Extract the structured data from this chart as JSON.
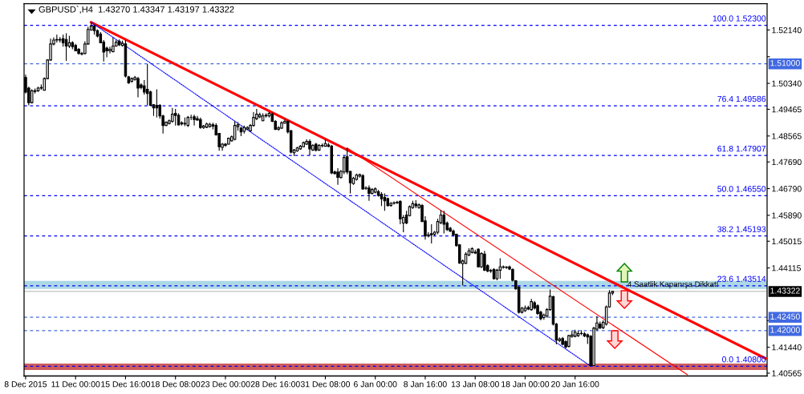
{
  "chart_data": {
    "type": "candlestick",
    "title": "GBPUSD`,H4  1.43270 1.43347 1.43197 1.43322",
    "categories": [
      "8 Dec 2015",
      null,
      null,
      null,
      null,
      null,
      null,
      null,
      null,
      null,
      null,
      null,
      null,
      null,
      null,
      null,
      "11 Dec 00:00",
      null,
      null,
      null,
      null,
      null,
      null,
      null,
      null,
      null,
      null,
      null,
      null,
      null,
      null,
      null,
      "15 Dec 16:00",
      null,
      null,
      null,
      null,
      null,
      null,
      null,
      null,
      null,
      null,
      null,
      null,
      null,
      null,
      null,
      "18 Dec 08:00",
      null,
      null,
      null,
      null,
      null,
      null,
      null,
      null,
      null,
      null,
      null,
      null,
      null,
      null,
      null,
      "23 Dec 00:00",
      null,
      null,
      null,
      null,
      null,
      null,
      null,
      null,
      null,
      null,
      null,
      null,
      null,
      null,
      null,
      "28 Dec 16:00",
      null,
      null,
      null,
      null,
      null,
      null,
      null,
      null,
      null,
      null,
      null,
      null,
      null,
      null,
      null,
      "31 Dec 08:00",
      null,
      null,
      null,
      null,
      null,
      null,
      null,
      null,
      null,
      null,
      null,
      null,
      null,
      null,
      null,
      "6 Jan 00:00",
      null,
      null,
      null,
      null,
      null,
      null,
      null,
      null,
      null,
      null,
      null,
      null,
      null,
      null,
      null,
      "8 Jan 16:00",
      null,
      null,
      null,
      null,
      null,
      null,
      null,
      null,
      null,
      null,
      null,
      null,
      null,
      null,
      null,
      "13 Jan 08:00",
      null,
      null,
      null,
      null,
      null,
      null,
      null,
      null,
      null,
      null,
      null,
      null,
      null,
      null,
      null,
      "18 Jan 00:00",
      null,
      null,
      null,
      null,
      null,
      null,
      null,
      null,
      null,
      null,
      null,
      null,
      null,
      null,
      null,
      "20 Jan 16:00",
      null,
      null,
      null,
      null,
      null,
      null,
      null,
      null,
      null,
      null,
      null,
      null,
      null,
      null,
      null,
      null,
      null,
      null,
      null,
      null,
      null,
      null,
      null,
      null,
      null,
      null,
      null,
      null,
      null,
      null,
      null,
      null,
      null,
      null,
      null,
      null,
      null,
      null,
      null,
      null,
      null,
      null,
      null,
      null,
      null,
      null,
      null,
      null,
      null,
      null,
      null,
      null,
      null,
      null,
      null,
      null,
      null,
      null,
      null,
      null,
      null
    ],
    "ohlc": [
      [
        1.5054,
        1.5063,
        1.5,
        1.5005
      ],
      [
        1.5018,
        1.5023,
        1.496,
        1.4969
      ],
      [
        1.4969,
        1.5014,
        1.4966,
        1.5009
      ],
      [
        1.5007,
        1.5017,
        1.5,
        1.5009
      ],
      [
        1.5009,
        1.5023,
        1.5005,
        1.5018
      ],
      [
        1.5018,
        1.503,
        1.5012,
        1.502
      ],
      [
        1.5011,
        1.5054,
        1.5009,
        1.505
      ],
      [
        1.505,
        1.5115,
        1.5048,
        1.5113
      ],
      [
        1.5113,
        1.5185,
        1.511,
        1.5167
      ],
      [
        1.5167,
        1.5189,
        1.5162,
        1.518
      ],
      [
        1.518,
        1.5198,
        1.5171,
        1.5182
      ],
      [
        1.5182,
        1.519,
        1.5172,
        1.518
      ],
      [
        1.5185,
        1.5198,
        1.5158,
        1.5171
      ],
      [
        1.5182,
        1.5203,
        1.511,
        1.516
      ],
      [
        1.516,
        1.5194,
        1.5153,
        1.5171
      ],
      [
        1.5171,
        1.5176,
        1.5149,
        1.5158
      ],
      [
        1.5162,
        1.5167,
        1.5142,
        1.5144
      ],
      [
        1.5149,
        1.5153,
        1.5131,
        1.5135
      ],
      [
        1.5135,
        1.514,
        1.5128,
        1.5133
      ],
      [
        1.5135,
        1.5176,
        1.5131,
        1.5167
      ],
      [
        1.5167,
        1.5225,
        1.5164,
        1.5216
      ],
      [
        1.5214,
        1.5238,
        1.5212,
        1.5227
      ],
      [
        1.5227,
        1.5232,
        1.5198,
        1.5212
      ],
      [
        1.5212,
        1.5216,
        1.5189,
        1.5194
      ],
      [
        1.52,
        1.5207,
        1.5169,
        1.5171
      ],
      [
        1.5173,
        1.518,
        1.5108,
        1.514
      ],
      [
        1.5153,
        1.5158,
        1.5122,
        1.5144
      ],
      [
        1.5144,
        1.5158,
        1.5135,
        1.5149
      ],
      [
        1.5141,
        1.5189,
        1.5138,
        1.516
      ],
      [
        1.516,
        1.518,
        1.5158,
        1.5173
      ],
      [
        1.5176,
        1.5182,
        1.516,
        1.5164
      ],
      [
        1.5162,
        1.5178,
        1.5158,
        1.5169
      ],
      [
        1.5167,
        1.518,
        1.5054,
        1.5059
      ],
      [
        1.5056,
        1.5059,
        1.5032,
        1.5036
      ],
      [
        1.5041,
        1.5054,
        1.5036,
        1.505
      ],
      [
        1.5047,
        1.5059,
        1.5043,
        1.5054
      ],
      [
        1.505,
        1.5056,
        1.4987,
        1.5018
      ],
      [
        1.5029,
        1.5034,
        1.5014,
        1.502
      ],
      [
        1.5025,
        1.5045,
        1.4996,
        1.5005
      ],
      [
        1.5014,
        1.5099,
        1.496,
        1.5
      ],
      [
        1.5005,
        1.5009,
        1.4958,
        1.496
      ],
      [
        1.4962,
        1.4964,
        1.4924,
        1.4951
      ],
      [
        1.496,
        1.5014,
        1.4919,
        1.4951
      ],
      [
        1.496,
        1.4964,
        1.4915,
        1.4924
      ],
      [
        1.4924,
        1.4928,
        1.4865,
        1.4892
      ],
      [
        1.4892,
        1.4906,
        1.489,
        1.4903
      ],
      [
        1.4899,
        1.4912,
        1.4895,
        1.4908
      ],
      [
        1.4906,
        1.4951,
        1.4901,
        1.493
      ],
      [
        1.4933,
        1.4948,
        1.4892,
        1.4926
      ],
      [
        1.4926,
        1.4933,
        1.4892,
        1.4894
      ],
      [
        1.4901,
        1.4906,
        1.4892,
        1.4897
      ],
      [
        1.4897,
        1.4919,
        1.489,
        1.4899
      ],
      [
        1.4892,
        1.4924,
        1.4887,
        1.4919
      ],
      [
        1.4919,
        1.4928,
        1.491,
        1.4919
      ],
      [
        1.4921,
        1.4928,
        1.4892,
        1.4912
      ],
      [
        1.4915,
        1.4924,
        1.4908,
        1.491
      ],
      [
        1.4912,
        1.4919,
        1.4881,
        1.4885
      ],
      [
        1.4885,
        1.4894,
        1.488,
        1.489
      ],
      [
        1.4886,
        1.4901,
        1.4883,
        1.4897
      ],
      [
        1.4888,
        1.4901,
        1.4885,
        1.4896
      ],
      [
        1.4894,
        1.4901,
        1.4879,
        1.489
      ],
      [
        1.4892,
        1.4899,
        1.4858,
        1.486
      ],
      [
        1.4865,
        1.4867,
        1.4807,
        1.482
      ],
      [
        1.4818,
        1.4833,
        1.4807,
        1.4829
      ],
      [
        1.4829,
        1.4833,
        1.482,
        1.4825
      ],
      [
        1.4829,
        1.4851,
        1.4827,
        1.4849
      ],
      [
        1.484,
        1.4858,
        1.4838,
        1.4854
      ],
      [
        1.4845,
        1.4906,
        1.4842,
        1.4892
      ],
      [
        1.4888,
        1.4903,
        1.4874,
        1.4894
      ],
      [
        1.4883,
        1.4888,
        1.4856,
        1.487
      ],
      [
        1.4872,
        1.4892,
        1.4865,
        1.4885
      ],
      [
        1.488,
        1.489,
        1.4876,
        1.4885
      ],
      [
        1.4874,
        1.4897,
        1.487,
        1.4892
      ],
      [
        1.4892,
        1.4937,
        1.4888,
        1.4919
      ],
      [
        1.4915,
        1.4948,
        1.491,
        1.493
      ],
      [
        1.4921,
        1.4935,
        1.4917,
        1.4928
      ],
      [
        1.4908,
        1.4933,
        1.4906,
        1.4924
      ],
      [
        1.4924,
        1.4933,
        1.4919,
        1.4927
      ],
      [
        1.4924,
        1.4937,
        1.4919,
        1.4933
      ],
      [
        1.493,
        1.4935,
        1.4903,
        1.4906
      ],
      [
        1.4906,
        1.491,
        1.4876,
        1.4879
      ],
      [
        1.4879,
        1.489,
        1.4874,
        1.4884
      ],
      [
        1.4883,
        1.4906,
        1.488,
        1.4901
      ],
      [
        1.49,
        1.4912,
        1.4897,
        1.4906
      ],
      [
        1.4906,
        1.491,
        1.4865,
        1.487
      ],
      [
        1.4874,
        1.4877,
        1.4798,
        1.4802
      ],
      [
        1.48,
        1.4813,
        1.4789,
        1.4809
      ],
      [
        1.4806,
        1.482,
        1.4803,
        1.4816
      ],
      [
        1.4813,
        1.4826,
        1.481,
        1.4822
      ],
      [
        1.482,
        1.4838,
        1.4818,
        1.4834
      ],
      [
        1.4829,
        1.4845,
        1.4826,
        1.4838
      ],
      [
        1.4838,
        1.4845,
        1.4791,
        1.4813
      ],
      [
        1.4809,
        1.4829,
        1.4806,
        1.4825
      ],
      [
        1.4829,
        1.4833,
        1.4804,
        1.4809
      ],
      [
        1.4809,
        1.4829,
        1.4806,
        1.4825
      ],
      [
        1.4825,
        1.4831,
        1.4818,
        1.4824
      ],
      [
        1.4822,
        1.4845,
        1.482,
        1.4831
      ],
      [
        1.4826,
        1.4833,
        1.4818,
        1.4822
      ],
      [
        1.4822,
        1.4826,
        1.4728,
        1.4732
      ],
      [
        1.4735,
        1.474,
        1.4726,
        1.473
      ],
      [
        1.4735,
        1.4748,
        1.4692,
        1.4717
      ],
      [
        1.4717,
        1.4742,
        1.4712,
        1.4737
      ],
      [
        1.4735,
        1.479,
        1.4728,
        1.4784
      ],
      [
        1.4786,
        1.4816,
        1.4728,
        1.4735
      ],
      [
        1.4737,
        1.4739,
        1.4663,
        1.4699
      ],
      [
        1.4696,
        1.4719,
        1.4692,
        1.4714
      ],
      [
        1.471,
        1.473,
        1.4706,
        1.4725
      ],
      [
        1.4721,
        1.473,
        1.4716,
        1.4726
      ],
      [
        1.4723,
        1.4728,
        1.4675,
        1.4678
      ],
      [
        1.468,
        1.4687,
        1.4674,
        1.4681
      ],
      [
        1.4681,
        1.469,
        1.4638,
        1.4663
      ],
      [
        1.4663,
        1.4681,
        1.4659,
        1.4676
      ],
      [
        1.4667,
        1.4683,
        1.4663,
        1.4678
      ],
      [
        1.4669,
        1.4674,
        1.4652,
        1.4656
      ],
      [
        1.466,
        1.4667,
        1.462,
        1.4645
      ],
      [
        1.4649,
        1.4663,
        1.4604,
        1.4638
      ],
      [
        1.4645,
        1.4649,
        1.4618,
        1.4622
      ],
      [
        1.4622,
        1.4634,
        1.4618,
        1.4629
      ],
      [
        1.463,
        1.4636,
        1.4625,
        1.4631
      ],
      [
        1.4631,
        1.4638,
        1.4627,
        1.4633
      ],
      [
        1.4636,
        1.464,
        1.4559,
        1.4577
      ],
      [
        1.4563,
        1.459,
        1.4532,
        1.4582
      ],
      [
        1.459,
        1.4604,
        1.4559,
        1.4563
      ],
      [
        1.4588,
        1.4622,
        1.4585,
        1.4618
      ],
      [
        1.4615,
        1.4638,
        1.4611,
        1.4628
      ],
      [
        1.4627,
        1.464,
        1.4613,
        1.4621
      ],
      [
        1.4615,
        1.4629,
        1.4611,
        1.4624
      ],
      [
        1.4622,
        1.4627,
        1.4566,
        1.4568
      ],
      [
        1.457,
        1.4586,
        1.4507,
        1.4519
      ],
      [
        1.4522,
        1.4532,
        1.4514,
        1.4523
      ],
      [
        1.4527,
        1.4559,
        1.4494,
        1.4523
      ],
      [
        1.4525,
        1.4536,
        1.452,
        1.4532
      ],
      [
        1.4532,
        1.4577,
        1.4525,
        1.4568
      ],
      [
        1.4564,
        1.4606,
        1.4559,
        1.459
      ],
      [
        1.459,
        1.4604,
        1.4528,
        1.4559
      ],
      [
        1.4563,
        1.4568,
        1.4536,
        1.4541
      ],
      [
        1.4545,
        1.455,
        1.4532,
        1.4536
      ],
      [
        1.4536,
        1.4541,
        1.4518,
        1.4523
      ],
      [
        1.4525,
        1.4527,
        1.4483,
        1.4487
      ],
      [
        1.4489,
        1.4492,
        1.4425,
        1.4428
      ],
      [
        1.4426,
        1.444,
        1.4352,
        1.4435
      ],
      [
        1.4427,
        1.4464,
        1.4424,
        1.4458
      ],
      [
        1.4455,
        1.4478,
        1.4451,
        1.4469
      ],
      [
        1.4464,
        1.4481,
        1.446,
        1.4476
      ],
      [
        1.4462,
        1.4473,
        1.4458,
        1.4465
      ],
      [
        1.4474,
        1.4478,
        1.4413,
        1.4415
      ],
      [
        1.4415,
        1.4464,
        1.4411,
        1.446
      ],
      [
        1.4458,
        1.4469,
        1.4401,
        1.4404
      ],
      [
        1.4419,
        1.4424,
        1.4397,
        1.4401
      ],
      [
        1.4401,
        1.4408,
        1.4395,
        1.4403
      ],
      [
        1.4406,
        1.4411,
        1.4372,
        1.4375
      ],
      [
        1.4375,
        1.4408,
        1.437,
        1.4404
      ],
      [
        1.4404,
        1.4444,
        1.4375,
        1.4415
      ],
      [
        1.4415,
        1.442,
        1.4409,
        1.4414
      ],
      [
        1.4414,
        1.4418,
        1.4408,
        1.4413
      ],
      [
        1.4415,
        1.442,
        1.4404,
        1.4408
      ],
      [
        1.4406,
        1.441,
        1.4366,
        1.437
      ],
      [
        1.4368,
        1.437,
        1.4338,
        1.4341
      ],
      [
        1.4347,
        1.435,
        1.4258,
        1.4262
      ],
      [
        1.4262,
        1.428,
        1.4258,
        1.4276
      ],
      [
        1.4267,
        1.4285,
        1.4263,
        1.4276
      ],
      [
        1.4278,
        1.4284,
        1.4269,
        1.4273
      ],
      [
        1.4271,
        1.4307,
        1.4267,
        1.4298
      ],
      [
        1.4294,
        1.43,
        1.4271,
        1.4276
      ],
      [
        1.4284,
        1.4289,
        1.4253,
        1.4258
      ],
      [
        1.4262,
        1.4267,
        1.4235,
        1.424
      ],
      [
        1.4244,
        1.4258,
        1.4237,
        1.4253
      ],
      [
        1.4249,
        1.4276,
        1.4244,
        1.4271
      ],
      [
        1.4271,
        1.4339,
        1.4267,
        1.4316
      ],
      [
        1.4314,
        1.4318,
        1.4217,
        1.4222
      ],
      [
        1.4222,
        1.4226,
        1.4154,
        1.4168
      ],
      [
        1.4167,
        1.4177,
        1.4161,
        1.4172
      ],
      [
        1.4173,
        1.4179,
        1.415,
        1.4154
      ],
      [
        1.4163,
        1.4167,
        1.414,
        1.4145
      ],
      [
        1.4147,
        1.4186,
        1.4143,
        1.4183
      ],
      [
        1.418,
        1.4199,
        1.4176,
        1.4185
      ],
      [
        1.4181,
        1.4203,
        1.4177,
        1.4195
      ],
      [
        1.4183,
        1.4199,
        1.4179,
        1.419
      ],
      [
        1.419,
        1.4201,
        1.4185,
        1.4191
      ],
      [
        1.4189,
        1.4195,
        1.4178,
        1.4182
      ],
      [
        1.4186,
        1.419,
        1.4155,
        1.4179
      ],
      [
        1.4181,
        1.4185,
        1.408,
        1.4082
      ],
      [
        1.4082,
        1.4213,
        1.408,
        1.4208
      ],
      [
        1.4205,
        1.4249,
        1.4199,
        1.4226
      ],
      [
        1.4222,
        1.4231,
        1.4205,
        1.421
      ],
      [
        1.421,
        1.4235,
        1.4205,
        1.4228
      ],
      [
        1.4222,
        1.4285,
        1.4217,
        1.428
      ],
      [
        1.428,
        1.4337,
        1.4277,
        1.4327
      ],
      [
        1.4327,
        1.43347,
        1.43197,
        1.43322
      ],
      null,
      null,
      null,
      null,
      null,
      null,
      null,
      null,
      null,
      null,
      null,
      null,
      null,
      null,
      null,
      null,
      null,
      null,
      null,
      null,
      null,
      null,
      null,
      null,
      null,
      null,
      null,
      null,
      null,
      null,
      null,
      null,
      null,
      null,
      null,
      null,
      null,
      null,
      null,
      null,
      null,
      null,
      null,
      null,
      null,
      null,
      null,
      null,
      null
    ],
    "series": [
      {
        "type": "line",
        "color": "#ff0000",
        "line_style": "solid",
        "values": [
          null,
          null,
          null,
          null,
          null,
          null,
          null,
          null,
          null,
          null,
          null,
          null,
          null,
          null,
          null,
          null,
          null,
          null,
          null,
          null,
          null,
          1.524,
          null,
          null,
          null,
          null,
          null,
          null,
          null,
          null,
          null,
          null,
          null,
          null,
          null,
          null,
          null,
          null,
          null,
          null,
          null,
          null,
          null,
          null,
          null,
          null,
          null,
          null,
          null,
          null,
          null,
          null,
          null,
          null,
          null,
          null,
          null,
          null,
          null,
          null,
          null,
          null,
          null,
          null,
          null,
          null,
          null,
          null,
          null,
          null,
          null,
          null,
          null,
          null,
          null,
          null,
          null,
          null,
          null,
          null,
          null,
          null,
          null,
          null,
          null,
          null,
          null,
          null,
          null,
          null,
          null,
          null,
          null,
          null,
          null,
          null,
          null,
          null,
          null,
          null,
          null,
          null,
          null,
          null,
          null,
          null,
          null,
          null,
          null,
          null,
          null,
          null,
          null,
          null,
          null,
          null,
          null,
          null,
          null,
          null,
          null,
          null,
          null,
          null,
          null,
          null,
          null,
          null,
          null,
          null,
          null,
          null,
          null,
          null,
          null,
          null,
          null,
          null,
          null,
          null,
          null,
          null,
          null,
          null,
          null,
          null,
          null,
          null,
          null,
          null,
          null,
          null,
          null,
          null,
          null,
          null,
          null,
          null,
          null,
          null,
          null,
          null,
          null,
          null,
          null,
          null,
          null,
          null,
          null,
          null,
          null,
          null,
          null,
          null,
          null,
          null,
          null,
          null,
          null,
          null,
          null,
          null,
          null,
          null,
          null,
          null,
          null,
          null,
          null,
          null,
          null,
          null,
          null,
          null,
          null,
          null,
          null,
          null,
          null,
          null,
          null,
          null,
          null,
          null,
          null,
          null,
          null,
          null,
          null,
          null,
          null,
          null,
          null,
          null,
          null,
          null,
          null,
          null,
          null,
          null,
          null,
          null,
          null,
          null,
          null,
          null,
          null,
          null,
          null,
          null,
          null,
          null,
          null,
          null,
          null,
          null,
          null,
          1.4106
        ]
      },
      {
        "type": "line",
        "color": "#ff0000",
        "line_style": "solid",
        "values": [
          null,
          null,
          null,
          null,
          null,
          null,
          null,
          null,
          null,
          null,
          null,
          null,
          null,
          null,
          null,
          null,
          null,
          null,
          null,
          null,
          null,
          null,
          null,
          null,
          null,
          null,
          null,
          null,
          null,
          null,
          null,
          null,
          null,
          null,
          null,
          null,
          null,
          null,
          null,
          null,
          null,
          null,
          null,
          null,
          null,
          null,
          null,
          null,
          null,
          null,
          null,
          null,
          null,
          null,
          null,
          null,
          null,
          null,
          null,
          null,
          null,
          null,
          null,
          null,
          null,
          null,
          null,
          null,
          null,
          null,
          null,
          null,
          null,
          null,
          null,
          null,
          null,
          null,
          null,
          null,
          null,
          null,
          null,
          null,
          null,
          null,
          null,
          null,
          null,
          null,
          null,
          null,
          null,
          null,
          null,
          null,
          null,
          null,
          null,
          null,
          null,
          null,
          null,
          1.4816,
          null,
          null,
          null,
          null,
          null,
          null,
          null,
          null,
          null,
          null,
          null,
          null,
          null,
          null,
          null,
          null,
          null,
          null,
          null,
          null,
          null,
          null,
          null,
          null,
          null,
          null,
          null,
          null,
          null,
          null,
          null,
          null,
          null,
          null,
          null,
          null,
          null,
          null,
          null,
          null,
          null,
          null,
          null,
          null,
          null,
          null,
          null,
          null,
          null,
          null,
          null,
          null,
          null,
          null,
          null,
          null,
          null,
          null,
          null,
          null,
          null,
          null,
          null,
          null,
          null,
          null,
          null,
          null,
          null,
          null,
          null,
          null,
          null,
          null,
          null,
          null,
          null,
          null,
          null,
          null,
          null,
          null,
          null,
          null,
          null,
          null,
          null,
          null,
          null,
          null,
          null,
          null,
          null,
          null,
          null,
          null,
          null,
          null,
          null,
          null,
          null,
          null,
          null,
          null,
          null,
          null,
          null,
          null,
          1.4051,
          null,
          null,
          null,
          null,
          null,
          null,
          null,
          null,
          null,
          null,
          null,
          null,
          null,
          null,
          null,
          null,
          null,
          null,
          null,
          null,
          null,
          null,
          null,
          null,
          null
        ]
      },
      {
        "type": "line",
        "color": "#0000ff",
        "line_style": "dotted",
        "values": [
          null,
          null,
          null,
          null,
          null,
          null,
          null,
          null,
          null,
          null,
          null,
          null,
          null,
          null,
          null,
          null,
          null,
          null,
          null,
          null,
          null,
          1.524,
          null,
          null,
          null,
          null,
          null,
          null,
          null,
          null,
          null,
          null,
          null,
          null,
          null,
          null,
          null,
          null,
          null,
          null,
          null,
          null,
          null,
          null,
          null,
          null,
          null,
          null,
          null,
          null,
          null,
          null,
          null,
          null,
          null,
          null,
          null,
          null,
          null,
          null,
          null,
          null,
          null,
          null,
          null,
          null,
          null,
          null,
          null,
          null,
          null,
          null,
          null,
          null,
          null,
          null,
          null,
          null,
          null,
          null,
          null,
          null,
          null,
          null,
          null,
          null,
          null,
          null,
          null,
          null,
          null,
          null,
          null,
          null,
          null,
          null,
          null,
          null,
          null,
          null,
          null,
          null,
          null,
          null,
          null,
          null,
          null,
          null,
          null,
          null,
          null,
          null,
          null,
          null,
          null,
          null,
          null,
          null,
          null,
          null,
          null,
          null,
          null,
          null,
          null,
          null,
          null,
          null,
          null,
          null,
          null,
          null,
          null,
          null,
          null,
          null,
          null,
          null,
          null,
          null,
          null,
          null,
          null,
          null,
          null,
          null,
          null,
          null,
          null,
          null,
          null,
          null,
          null,
          null,
          null,
          null,
          null,
          null,
          null,
          null,
          null,
          null,
          null,
          null,
          null,
          null,
          null,
          null,
          null,
          null,
          null,
          null,
          null,
          null,
          null,
          null,
          null,
          null,
          null,
          null,
          null,
          1.408,
          null,
          null,
          null,
          null,
          null,
          null,
          null,
          null,
          null,
          null,
          null,
          null,
          null,
          null,
          null,
          null,
          null,
          null,
          null,
          null,
          null,
          null,
          null,
          null,
          null,
          null,
          null,
          null,
          null,
          null,
          null,
          null,
          null,
          null,
          null,
          null,
          null,
          null,
          null,
          null,
          null,
          null,
          null,
          null,
          null,
          null,
          null,
          null,
          null,
          null,
          null,
          null,
          null,
          null,
          null,
          null
        ]
      }
    ],
    "ylim": [
      1.4047,
      1.5303
    ],
    "yticks": [
      {
        "value": 1.5214,
        "label": "1.52140"
      },
      {
        "value": 1.5124,
        "label": null
      },
      {
        "value": 1.5034,
        "label": "1.50340"
      },
      {
        "value": 1.49465,
        "label": "1.49465"
      },
      {
        "value": 1.48565,
        "label": "1.48565"
      },
      {
        "value": 1.4769,
        "label": "1.47690"
      },
      {
        "value": 1.4679,
        "label": "1.46790"
      },
      {
        "value": 1.4589,
        "label": "1.45890"
      },
      {
        "value": 1.45015,
        "label": "1.45015"
      },
      {
        "value": 1.44115,
        "label": "1.44115"
      },
      {
        "value": 1.4234,
        "label": null
      },
      {
        "value": 1.4144,
        "label": "1.41440"
      },
      {
        "value": 1.40565,
        "label": "1.40565"
      }
    ],
    "ref_lines": [
      {
        "axis": "y",
        "value": 1.523,
        "color": "#0000ff",
        "line_style": "dashed"
      },
      {
        "axis": "y",
        "value": 1.49586,
        "color": "#0000ff",
        "line_style": "dashed"
      },
      {
        "axis": "y",
        "value": 1.47907,
        "color": "#0000ff",
        "line_style": "dashed"
      },
      {
        "axis": "y",
        "value": 1.4655,
        "color": "#0000ff",
        "line_style": "dashed"
      },
      {
        "axis": "y",
        "value": 1.45193,
        "color": "#0000ff",
        "line_style": "dashed"
      },
      {
        "axis": "y",
        "value": 1.43514,
        "color": "#0000ff",
        "line_style": "dashed"
      },
      {
        "axis": "y",
        "value": 1.408,
        "color": "#0000ff",
        "line_style": "dashed"
      },
      {
        "axis": "y",
        "value": 1.51,
        "label": "1.51000",
        "color": "#4169e1",
        "line_style": "dashed"
      },
      {
        "axis": "y",
        "value": 1.4245,
        "label": "1.42450",
        "color": "#4169e1",
        "line_style": "dashed"
      },
      {
        "axis": "y",
        "value": 1.42,
        "label": "1.42000",
        "color": "#4169e1",
        "line_style": "dashed"
      },
      {
        "axis": "y",
        "value": 1.43322,
        "label": "1.43322",
        "color": "#c0c0c0",
        "line_style": "solid"
      }
    ],
    "bands": [
      {
        "axis": "y",
        "from": 1.4341,
        "to": 1.4368,
        "color": "#add8e6",
        "label": "4 Saatlik Kapanışa Dikkat!"
      },
      {
        "axis": "y",
        "from": 1.4067,
        "to": 1.4089,
        "color": "#cd5c5c"
      }
    ],
    "annotations": [
      {
        "text": "100.0 1.52300",
        "y": 1.523
      },
      {
        "text": "76.4 1.49586",
        "y": 1.49586
      },
      {
        "text": "61.8 1.47907",
        "y": 1.47907
      },
      {
        "text": "50.0 1.46550",
        "y": 1.4655
      },
      {
        "text": "38.2 1.45193",
        "y": 1.45193
      },
      {
        "text": "23.6 1.43514",
        "y": 1.43514
      },
      {
        "text": "0.0 1.40800",
        "y": 1.408
      }
    ]
  }
}
